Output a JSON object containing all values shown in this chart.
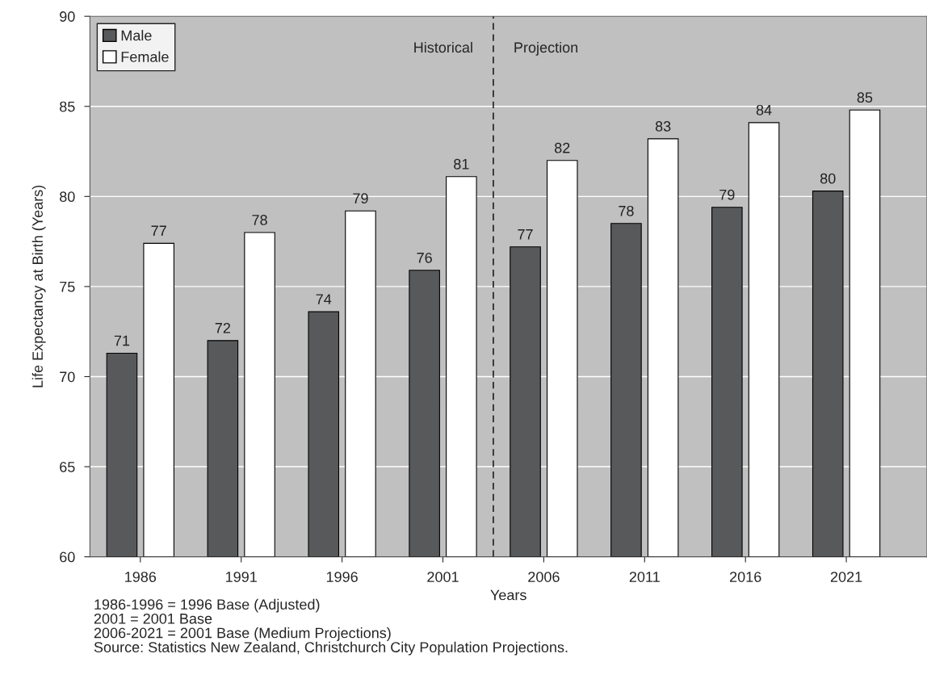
{
  "chart_data": {
    "type": "bar",
    "xlabel": "Years",
    "ylabel": "Life Expectancy at Birth (Years)",
    "x": [
      1986,
      1991,
      1996,
      2001,
      2006,
      2011,
      2016,
      2021
    ],
    "xlim": [
      1983.5,
      2025
    ],
    "xticks": [
      1986,
      1991,
      1996,
      2001,
      2006,
      2011,
      2016,
      2021
    ],
    "ylim": [
      60,
      90
    ],
    "yticks": [
      60,
      65,
      70,
      75,
      80,
      85,
      90
    ],
    "grid": "y",
    "legend": "top left",
    "series": [
      {
        "name": "Male",
        "color": "#58595b",
        "values": [
          71.3,
          72.0,
          73.6,
          75.9,
          77.2,
          78.5,
          79.4,
          80.3
        ],
        "value_labels": [
          "71",
          "72",
          "74",
          "76",
          "77",
          "78",
          "79",
          "80"
        ]
      },
      {
        "name": "Female",
        "color": "#ffffff",
        "values": [
          77.4,
          78.0,
          79.2,
          81.1,
          82.0,
          83.2,
          84.1,
          84.8
        ],
        "value_labels": [
          "77",
          "78",
          "79",
          "81",
          "82",
          "83",
          "84",
          "85"
        ]
      }
    ],
    "ref_lines": [
      {
        "axis": "x",
        "value": 2003.5,
        "line_style": "dashed",
        "color": "#000000"
      }
    ],
    "annotations": [
      "Historical",
      "Projection",
      "1986-1996 = 1996 Base (Adjusted)",
      "2001 = 2001 Base",
      "2006-2021 = 2001 Base (Medium Projections)",
      "Source: Statistics New Zealand, Christchurch City Population Projections."
    ]
  }
}
